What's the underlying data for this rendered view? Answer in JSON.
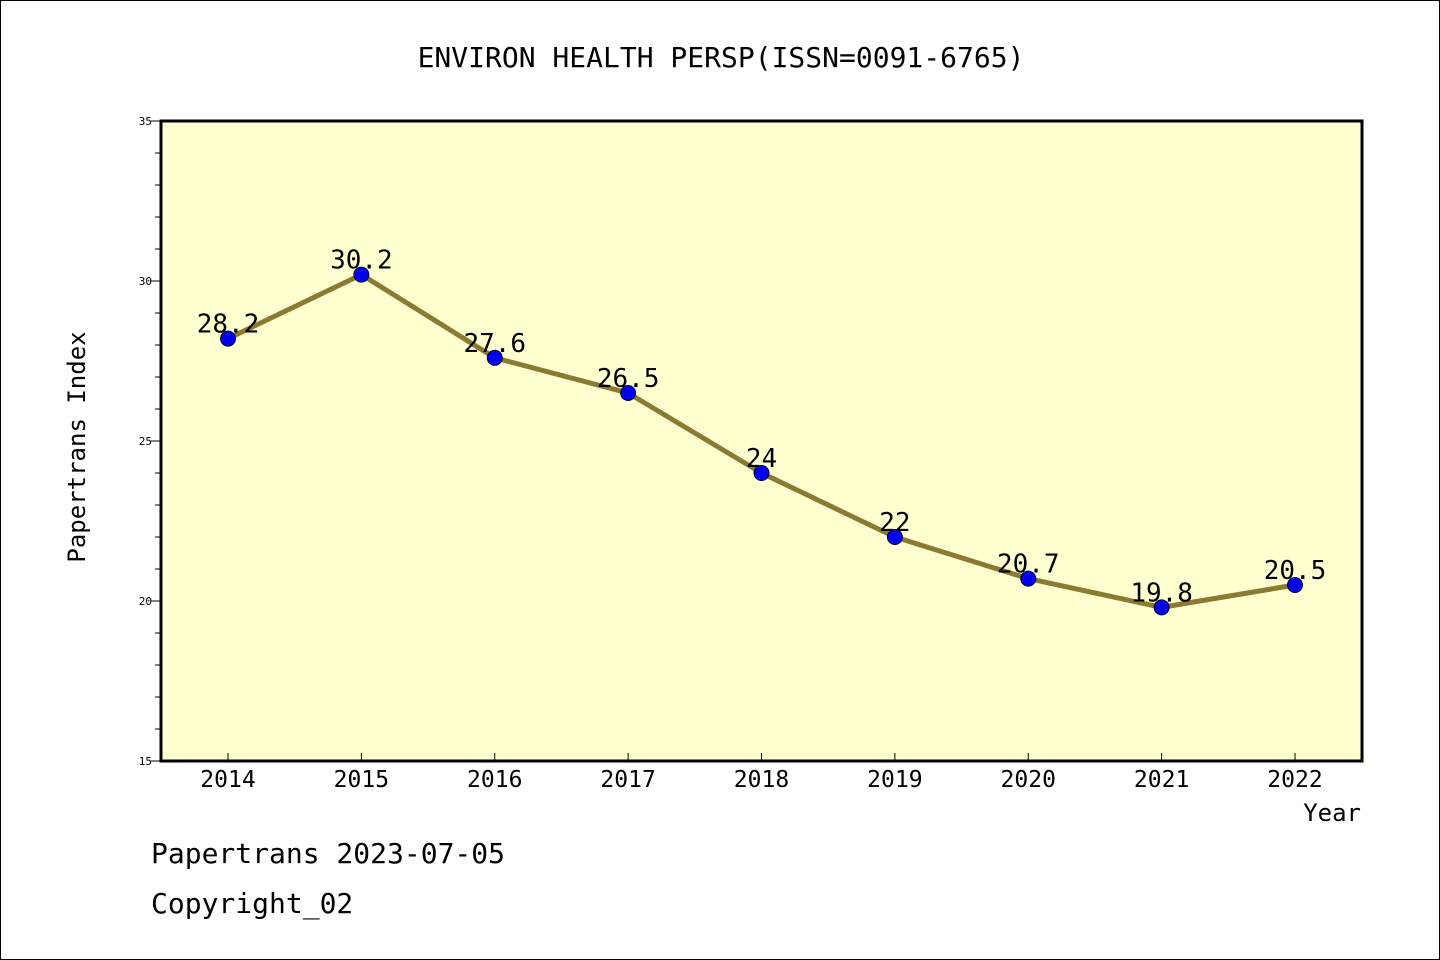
{
  "footer": {
    "line1": "Papertrans 2023-07-05",
    "line2": "Copyright_02"
  },
  "chart_data": {
    "type": "line",
    "title": "ENVIRON HEALTH PERSP(ISSN=0091-6765)",
    "xlabel": "Year",
    "ylabel": "Papertrans Index",
    "categories": [
      "2014",
      "2015",
      "2016",
      "2017",
      "2018",
      "2019",
      "2020",
      "2021",
      "2022"
    ],
    "values": [
      28.2,
      30.2,
      27.6,
      26.5,
      24,
      22,
      20.7,
      19.8,
      20.5
    ],
    "data_labels": [
      "28.2",
      "30.2",
      "27.6",
      "26.5",
      "24",
      "22",
      "20.7",
      "19.8",
      "20.5"
    ],
    "ylim": [
      15,
      35
    ],
    "yticks": [
      15,
      20,
      25,
      30,
      35
    ],
    "grid": false,
    "legend": "none",
    "colors": {
      "plot_background": "#ffffd0",
      "line": "#8b7a32",
      "marker": "#0000ee",
      "axis": "#000000"
    }
  }
}
